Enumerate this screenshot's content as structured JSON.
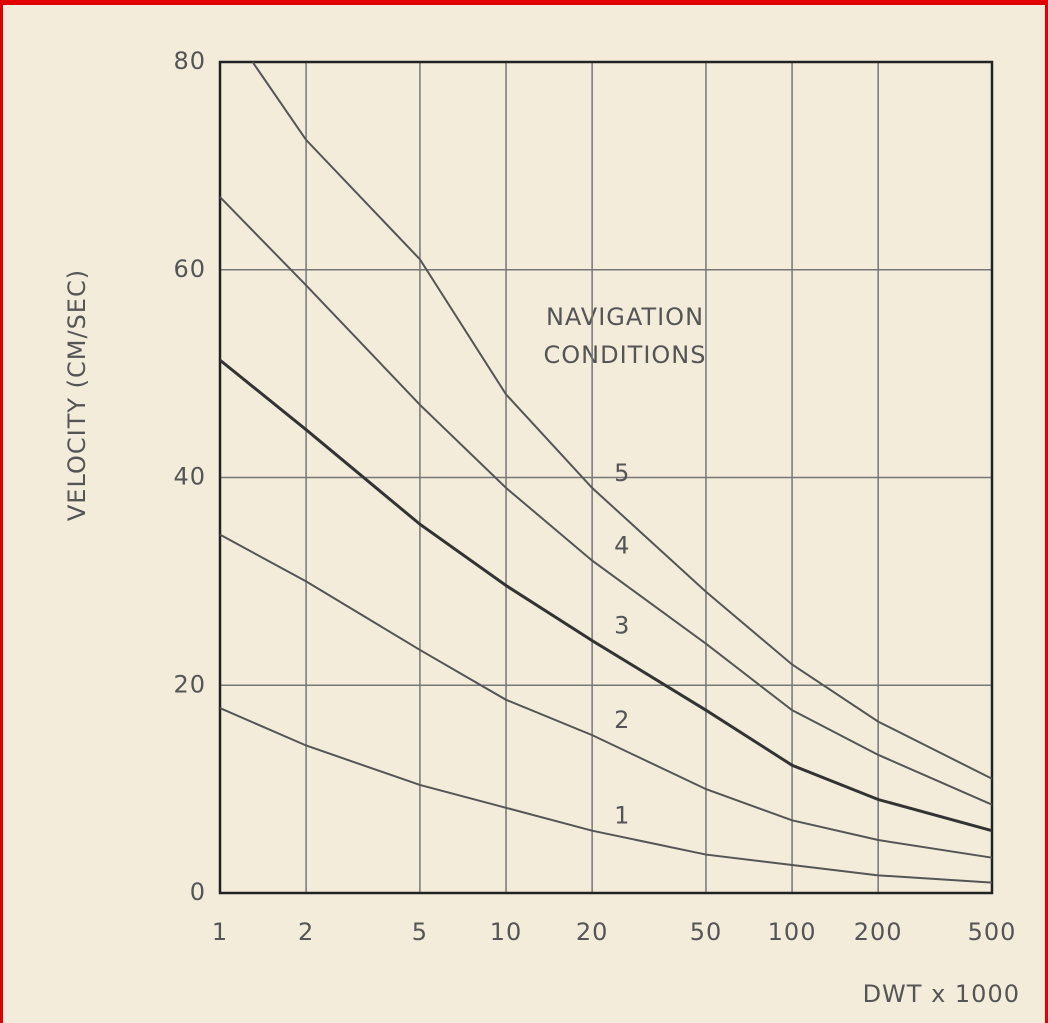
{
  "chart_data": {
    "type": "line",
    "xlabel": "DWT x 1000",
    "ylabel": "VELOCITY (CM/SEC)",
    "annotation": [
      "NAVIGATION",
      "CONDITIONS"
    ],
    "xscale": "log",
    "xlim": [
      1,
      500
    ],
    "xticks": [
      1,
      2,
      5,
      10,
      20,
      50,
      100,
      200,
      500
    ],
    "ylim": [
      0,
      80
    ],
    "yticks": [
      0,
      20,
      40,
      60,
      80
    ],
    "grid": true,
    "series": [
      {
        "name": "1",
        "color": "#555",
        "x": [
          1,
          2,
          5,
          10,
          20,
          50,
          100,
          200,
          500
        ],
        "values": [
          17.8,
          14.2,
          10.4,
          8.2,
          6,
          3.7,
          2.7,
          1.7,
          1
        ]
      },
      {
        "name": "2",
        "color": "#555",
        "x": [
          1,
          2,
          5,
          10,
          20,
          50,
          100,
          200,
          500
        ],
        "values": [
          34.5,
          30,
          23.4,
          18.6,
          15.2,
          10,
          7,
          5.1,
          3.4
        ]
      },
      {
        "name": "3",
        "color": "#333",
        "x": [
          1,
          2,
          5,
          10,
          20,
          50,
          100,
          200,
          500
        ],
        "values": [
          51.3,
          44.6,
          35.5,
          29.6,
          24.3,
          17.6,
          12.3,
          9,
          6
        ]
      },
      {
        "name": "4",
        "color": "#555",
        "x": [
          1,
          2,
          5,
          10,
          20,
          50,
          100,
          200,
          500
        ],
        "values": [
          67,
          58.5,
          47,
          39,
          32,
          24,
          17.6,
          13.3,
          8.5
        ]
      },
      {
        "name": "5",
        "color": "#555",
        "x": [
          1.3,
          2,
          5,
          10,
          20,
          50,
          100,
          200,
          500
        ],
        "values": [
          80,
          72.5,
          61,
          48,
          39,
          29,
          22,
          16.5,
          11
        ]
      }
    ]
  }
}
